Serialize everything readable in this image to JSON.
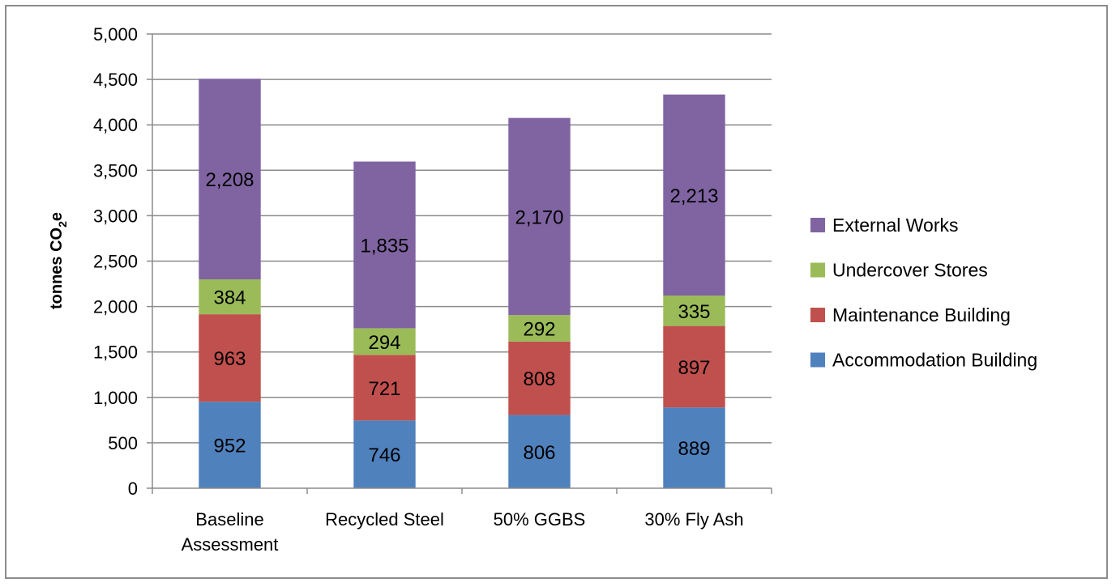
{
  "chart_data": {
    "type": "bar",
    "stacked": true,
    "categories": [
      [
        "Baseline",
        "Assessment"
      ],
      [
        "Recycled Steel"
      ],
      [
        "50% GGBS"
      ],
      [
        "30% Fly Ash"
      ]
    ],
    "series": [
      {
        "name": "Accommodation Building",
        "color": "#4f81bd",
        "values": [
          952,
          746,
          806,
          889
        ]
      },
      {
        "name": "Maintenance Building",
        "color": "#c0504d",
        "values": [
          963,
          721,
          808,
          897
        ]
      },
      {
        "name": "Undercover Stores",
        "color": "#9bbb59",
        "values": [
          384,
          294,
          292,
          335
        ]
      },
      {
        "name": "External Works",
        "color": "#8064a2",
        "values": [
          2208,
          1835,
          2170,
          2213
        ]
      }
    ],
    "ylabel": {
      "main": "tonnes CO",
      "sub": "2",
      "suffix": "e"
    },
    "ylim": [
      0,
      5000
    ],
    "ytick_step": 500,
    "ytick_labels": [
      "0",
      "500",
      "1,000",
      "1,500",
      "2,000",
      "2,500",
      "3,000",
      "3,500",
      "4,000",
      "4,500",
      "5,000"
    ],
    "data_labels": [
      [
        "952",
        "746",
        "806",
        "889"
      ],
      [
        "963",
        "721",
        "808",
        "897"
      ],
      [
        "384",
        "294",
        "292",
        "335"
      ],
      [
        "2,208",
        "1,835",
        "2,170",
        "2,213"
      ]
    ],
    "grid": true,
    "legend_position": "right",
    "legend_order": [
      3,
      2,
      1,
      0
    ]
  }
}
